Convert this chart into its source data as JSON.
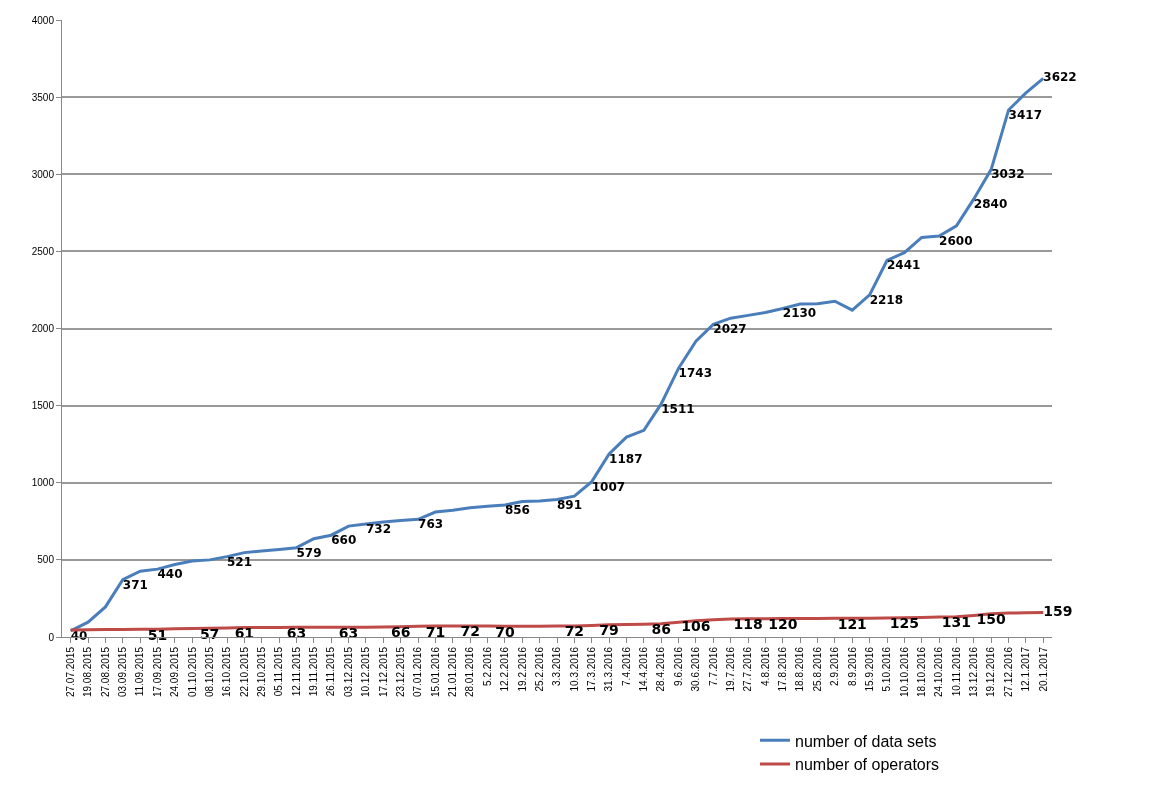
{
  "chart_data": {
    "type": "line",
    "categories": [
      "27.07.2015",
      "19.08.2015",
      "27.08.2015",
      "03.09.2015",
      "11.09.2015",
      "17.09.2015",
      "24.09.2015",
      "01.10.2015",
      "08.10.2015",
      "16.10.2015",
      "22.10.2015",
      "29.10.2015",
      "05.11.2015",
      "12.11.2015",
      "19.11.2015",
      "26.11.2015",
      "03.12.2015",
      "10.12.2015",
      "17.12.2015",
      "23.12.2015",
      "07.01.2016",
      "15.01.2016",
      "21.01.2016",
      "28.01.2016",
      "5.2.2016",
      "12.2.2016",
      "19.2.2016",
      "25.2.2016",
      "3.3.2016",
      "10.3.2016",
      "17.3.2016",
      "31.3.2016",
      "7.4.2016",
      "14.4.2016",
      "28.4.2016",
      "9.6.2016",
      "30.6.2016",
      "7.7.2016",
      "19.7.2016",
      "27.7.2016",
      "4.8.2016",
      "17.8.2016",
      "18.8.2016",
      "25.8.2016",
      "2.9.2016",
      "8.9.2016",
      "15.9.2016",
      "5.10.2016",
      "10.10.2016",
      "18.10.2016",
      "24.10.2016",
      "10.11.2016",
      "13.12.2016",
      "19.12.2016",
      "27.12.2016",
      "12.1.2017",
      "20.1.2017"
    ],
    "series": [
      {
        "name": "number of data sets",
        "color": "#4a7ebb",
        "values": [
          40,
          96,
          195,
          371,
          427,
          440,
          470,
          492,
          500,
          521,
          547,
          558,
          568,
          579,
          637,
          660,
          719,
          732,
          745,
          755,
          763,
          810,
          822,
          838,
          848,
          856,
          878,
          882,
          891,
          913,
          1007,
          1187,
          1296,
          1340,
          1511,
          1743,
          1918,
          2027,
          2067,
          2085,
          2104,
          2130,
          2159,
          2160,
          2177,
          2119,
          2218,
          2441,
          2492,
          2590,
          2600,
          2665,
          2840,
          3032,
          3417,
          3527,
          3622
        ],
        "value_labels": [
          "40",
          null,
          null,
          "371",
          null,
          "440",
          null,
          null,
          null,
          "521",
          null,
          null,
          null,
          "579",
          null,
          "660",
          null,
          "732",
          null,
          null,
          "763",
          null,
          null,
          null,
          null,
          "856",
          null,
          null,
          "891",
          null,
          "1007",
          "1187",
          null,
          null,
          "1511",
          "1743",
          null,
          "2027",
          null,
          null,
          null,
          "2130",
          null,
          null,
          null,
          null,
          "2218",
          "2441",
          null,
          null,
          "2600",
          null,
          "2840",
          "3032",
          "3417",
          null,
          "3622"
        ]
      },
      {
        "name": "number of operators",
        "color": "#be4b48",
        "values": [
          45,
          47,
          48,
          49,
          50,
          51,
          53,
          55,
          57,
          59,
          61,
          62,
          62,
          63,
          63,
          63,
          63,
          64,
          65,
          66,
          69,
          71,
          72,
          72,
          71,
          70,
          70,
          70,
          71,
          72,
          75,
          79,
          81,
          83,
          86,
          96,
          106,
          112,
          116,
          118,
          119,
          120,
          120,
          120,
          121,
          121,
          122,
          123,
          125,
          127,
          129,
          131,
          140,
          150,
          155,
          157,
          159
        ],
        "value_labels": [
          null,
          null,
          null,
          null,
          null,
          "51",
          null,
          null,
          "57",
          null,
          "61",
          null,
          null,
          "63",
          null,
          null,
          "63",
          null,
          null,
          "66",
          null,
          "71",
          null,
          "72",
          null,
          "70",
          null,
          null,
          null,
          "72",
          null,
          "79",
          null,
          null,
          "86",
          null,
          "106",
          null,
          null,
          "118",
          null,
          "120",
          null,
          null,
          null,
          "121",
          null,
          null,
          "125",
          null,
          null,
          "131",
          null,
          "150",
          null,
          null,
          "159"
        ]
      }
    ],
    "ylim": [
      0,
      4000
    ],
    "yticks": [
      0,
      500,
      1000,
      1500,
      2000,
      2500,
      3000,
      3500,
      4000
    ],
    "grid": "y",
    "legend": "bottom right",
    "marker": "none",
    "line_style": "solid"
  }
}
